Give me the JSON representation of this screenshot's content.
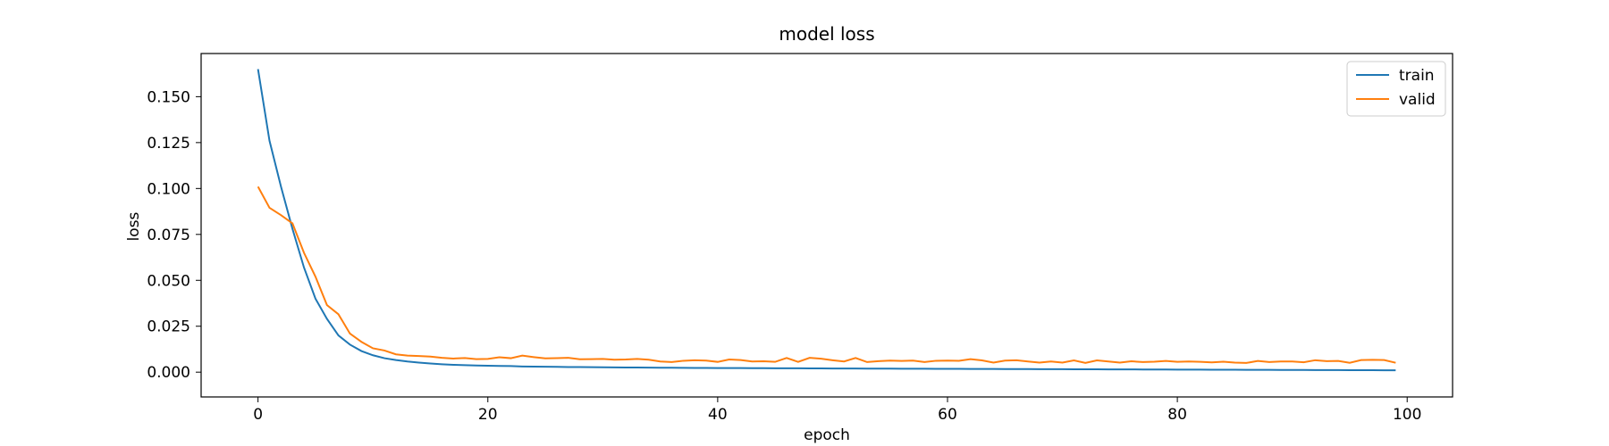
{
  "chart_data": {
    "type": "line",
    "title": "model loss",
    "xlabel": "epoch",
    "ylabel": "loss",
    "xlim": [
      -4.95,
      103.95
    ],
    "ylim": [
      -0.0135,
      0.1735
    ],
    "xticks": [
      0,
      20,
      40,
      60,
      80,
      100
    ],
    "yticks": [
      0.0,
      0.025,
      0.05,
      0.075,
      0.1,
      0.125,
      0.15
    ],
    "xtick_labels": [
      "0",
      "20",
      "40",
      "60",
      "80",
      "100"
    ],
    "ytick_labels": [
      "0.000",
      "0.025",
      "0.050",
      "0.075",
      "0.100",
      "0.125",
      "0.150"
    ],
    "grid": false,
    "legend": "top-right",
    "colors": {
      "train": "#1f77b4",
      "valid": "#ff7f0e"
    },
    "series": [
      {
        "name": "train",
        "x": [
          0,
          1,
          2,
          3,
          4,
          5,
          6,
          7,
          8,
          9,
          10,
          11,
          12,
          13,
          14,
          15,
          16,
          17,
          18,
          19,
          20,
          21,
          22,
          23,
          24,
          25,
          26,
          27,
          28,
          29,
          30,
          31,
          32,
          33,
          34,
          35,
          36,
          37,
          38,
          39,
          40,
          41,
          42,
          43,
          44,
          45,
          46,
          47,
          48,
          49,
          50,
          51,
          52,
          53,
          54,
          55,
          56,
          57,
          58,
          59,
          60,
          61,
          62,
          63,
          64,
          65,
          66,
          67,
          68,
          69,
          70,
          71,
          72,
          73,
          74,
          75,
          76,
          77,
          78,
          79,
          80,
          81,
          82,
          83,
          84,
          85,
          86,
          87,
          88,
          89,
          90,
          91,
          92,
          93,
          94,
          95,
          96,
          97,
          98,
          99
        ],
        "values": [
          0.165,
          0.126,
          0.101,
          0.078,
          0.057,
          0.04,
          0.029,
          0.02,
          0.015,
          0.0115,
          0.0092,
          0.0076,
          0.0066,
          0.0058,
          0.0052,
          0.0047,
          0.0043,
          0.004,
          0.0038,
          0.0036,
          0.0035,
          0.0034,
          0.0033,
          0.0031,
          0.003,
          0.00295,
          0.0029,
          0.0028,
          0.00275,
          0.0027,
          0.00265,
          0.0026,
          0.00255,
          0.0025,
          0.00245,
          0.0024,
          0.00238,
          0.00235,
          0.0023,
          0.00228,
          0.00225,
          0.00222,
          0.0022,
          0.00218,
          0.00215,
          0.00212,
          0.0021,
          0.00208,
          0.00205,
          0.00203,
          0.002,
          0.00198,
          0.00196,
          0.00194,
          0.00192,
          0.0019,
          0.00188,
          0.00186,
          0.00184,
          0.00182,
          0.0018,
          0.00178,
          0.00176,
          0.00174,
          0.00172,
          0.0017,
          0.00168,
          0.00166,
          0.00164,
          0.00162,
          0.0016,
          0.00158,
          0.00156,
          0.00154,
          0.00152,
          0.0015,
          0.00148,
          0.00146,
          0.00144,
          0.00142,
          0.0014,
          0.00138,
          0.00136,
          0.00134,
          0.00132,
          0.0013,
          0.00128,
          0.00126,
          0.00124,
          0.00122,
          0.0012,
          0.00118,
          0.00116,
          0.00114,
          0.00112,
          0.0011,
          0.00108,
          0.00106,
          0.00104,
          0.00102
        ]
      },
      {
        "name": "valid",
        "x": [
          0,
          1,
          2,
          3,
          4,
          5,
          6,
          7,
          8,
          9,
          10,
          11,
          12,
          13,
          14,
          15,
          16,
          17,
          18,
          19,
          20,
          21,
          22,
          23,
          24,
          25,
          26,
          27,
          28,
          29,
          30,
          31,
          32,
          33,
          34,
          35,
          36,
          37,
          38,
          39,
          40,
          41,
          42,
          43,
          44,
          45,
          46,
          47,
          48,
          49,
          50,
          51,
          52,
          53,
          54,
          55,
          56,
          57,
          58,
          59,
          60,
          61,
          62,
          63,
          64,
          65,
          66,
          67,
          68,
          69,
          70,
          71,
          72,
          73,
          74,
          75,
          76,
          77,
          78,
          79,
          80,
          81,
          82,
          83,
          84,
          85,
          86,
          87,
          88,
          89,
          90,
          91,
          92,
          93,
          94,
          95,
          96,
          97,
          98,
          99
        ],
        "values": [
          0.101,
          0.0895,
          0.0855,
          0.081,
          0.065,
          0.052,
          0.0365,
          0.0315,
          0.021,
          0.0165,
          0.013,
          0.0118,
          0.0097,
          0.009,
          0.0088,
          0.0085,
          0.0078,
          0.0074,
          0.0077,
          0.0071,
          0.0072,
          0.0081,
          0.0076,
          0.009,
          0.0082,
          0.0075,
          0.0076,
          0.0078,
          0.007,
          0.0071,
          0.0072,
          0.0068,
          0.0069,
          0.0072,
          0.0068,
          0.0058,
          0.0055,
          0.0062,
          0.0065,
          0.0063,
          0.0056,
          0.0069,
          0.0066,
          0.0058,
          0.0059,
          0.0056,
          0.0077,
          0.0056,
          0.0078,
          0.0073,
          0.0065,
          0.0058,
          0.0077,
          0.0055,
          0.006,
          0.0063,
          0.0061,
          0.0063,
          0.0055,
          0.0062,
          0.0063,
          0.0062,
          0.0071,
          0.0064,
          0.0052,
          0.0063,
          0.0065,
          0.0058,
          0.0052,
          0.0058,
          0.0052,
          0.0064,
          0.005,
          0.0064,
          0.0058,
          0.0052,
          0.0059,
          0.0055,
          0.0057,
          0.0061,
          0.0056,
          0.0058,
          0.0056,
          0.0053,
          0.0057,
          0.0052,
          0.005,
          0.0061,
          0.0055,
          0.0058,
          0.0058,
          0.0054,
          0.0065,
          0.006,
          0.0061,
          0.0051,
          0.0066,
          0.0067,
          0.0066,
          0.0051
        ]
      }
    ]
  }
}
